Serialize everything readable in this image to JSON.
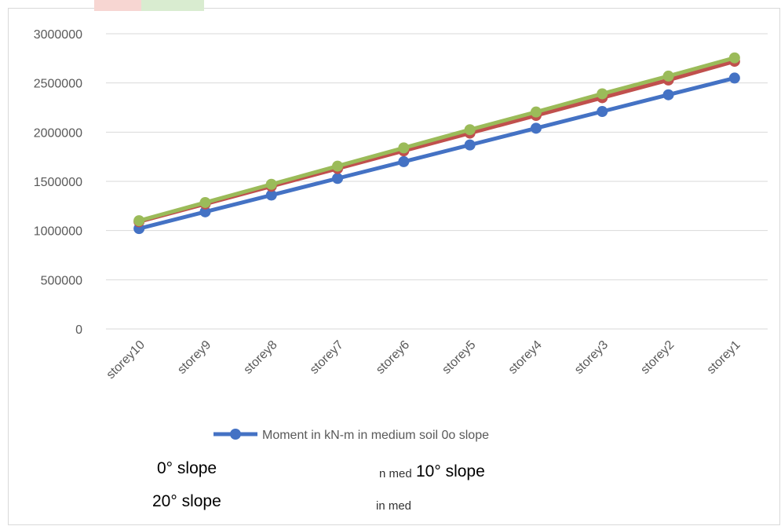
{
  "chart_data": {
    "type": "line",
    "categories": [
      "storey10",
      "storey9",
      "storey8",
      "storey7",
      "storey6",
      "storey5",
      "storey4",
      "storey3",
      "storey2",
      "storey1"
    ],
    "ylim": [
      0,
      3000000
    ],
    "yticks": [
      0,
      500000,
      1000000,
      1500000,
      2000000,
      2500000,
      3000000
    ],
    "ytick_labels": [
      "0",
      "500000",
      "1000000",
      "1500000",
      "2000000",
      "2500000",
      "3000000"
    ],
    "grid": true,
    "series": [
      {
        "name": "Moment in kN-m in medium soil 0o slope",
        "color": "#4472c4",
        "values": [
          1020000,
          1190000,
          1360000,
          1530000,
          1700000,
          1870000,
          2040000,
          2210000,
          2380000,
          2550000
        ]
      },
      {
        "color": "#c0504d",
        "values": [
          1090000,
          1270000,
          1450000,
          1630000,
          1810000,
          1990000,
          2170000,
          2350000,
          2530000,
          2720000
        ]
      },
      {
        "color": "#9bbb59",
        "values": [
          1100000,
          1285000,
          1470000,
          1655000,
          1840000,
          2025000,
          2205000,
          2390000,
          2570000,
          2755000
        ]
      }
    ],
    "legend": {
      "position": "bottom",
      "label": "Moment in kN-m in medium soil 0o slope"
    }
  },
  "notes": {
    "slope0": "0° slope",
    "slope10": "10° slope",
    "slope20": "20° slope",
    "nmed": "n med",
    "inmed": "in med"
  }
}
